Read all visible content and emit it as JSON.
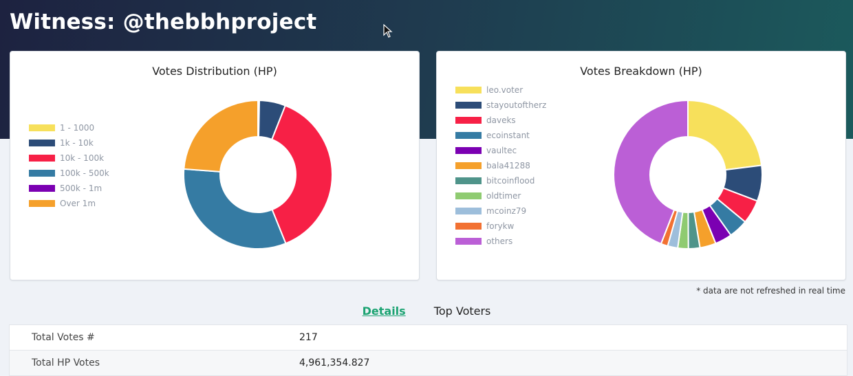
{
  "page": {
    "title": "Witness: @thebbhproject"
  },
  "distribution": {
    "title": "Votes Distribution (HP)",
    "legend": [
      {
        "label": "1 - 1000",
        "color": "#f7e05b"
      },
      {
        "label": "1k - 10k",
        "color": "#2c4c78"
      },
      {
        "label": "10k - 100k",
        "color": "#f72046"
      },
      {
        "label": "100k - 500k",
        "color": "#357ba3"
      },
      {
        "label": "500k - 1m",
        "color": "#7b00b2"
      },
      {
        "label": "Over 1m",
        "color": "#f5a02b"
      }
    ]
  },
  "breakdown": {
    "title": "Votes Breakdown (HP)",
    "legend": [
      {
        "label": "leo.voter",
        "color": "#f7e05b"
      },
      {
        "label": "stayoutoftherz",
        "color": "#2c4c78"
      },
      {
        "label": "daveks",
        "color": "#f72046"
      },
      {
        "label": "ecoinstant",
        "color": "#357ba3"
      },
      {
        "label": "vaultec",
        "color": "#7b00b2"
      },
      {
        "label": "bala41288",
        "color": "#f5a02b"
      },
      {
        "label": "bitcoinflood",
        "color": "#4f948a"
      },
      {
        "label": "oldtimer",
        "color": "#8fcb71"
      },
      {
        "label": "mcoinz79",
        "color": "#9dbedb"
      },
      {
        "label": "forykw",
        "color": "#f27132"
      },
      {
        "label": "others",
        "color": "#bb5fd6"
      }
    ]
  },
  "chart_data": [
    {
      "type": "pie",
      "title": "Votes Distribution (HP)",
      "categories": [
        "1 - 1000",
        "1k - 10k",
        "10k - 100k",
        "100k - 500k",
        "500k - 1m",
        "Over 1m"
      ],
      "values": [
        0.3,
        5.7,
        37.9,
        32.3,
        0,
        23.8
      ],
      "unit": "percent"
    },
    {
      "type": "pie",
      "title": "Votes Breakdown (HP)",
      "categories": [
        "leo.voter",
        "stayoutoftherz",
        "daveks",
        "ecoinstant",
        "vaultec",
        "bala41288",
        "bitcoinflood",
        "oldtimer",
        "mcoinz79",
        "forykw",
        "others"
      ],
      "values": [
        23.0,
        7.8,
        5.2,
        4.2,
        3.7,
        3.5,
        2.5,
        2.3,
        2.2,
        1.5,
        44.1
      ],
      "unit": "percent"
    }
  ],
  "note": "* data are not refreshed in real time",
  "tabs": [
    {
      "label": "Details",
      "active": true
    },
    {
      "label": "Top Voters",
      "active": false
    }
  ],
  "details": [
    {
      "label": "Total Votes #",
      "value": "217"
    },
    {
      "label": "Total HP Votes",
      "value": "4,961,354.827"
    }
  ]
}
